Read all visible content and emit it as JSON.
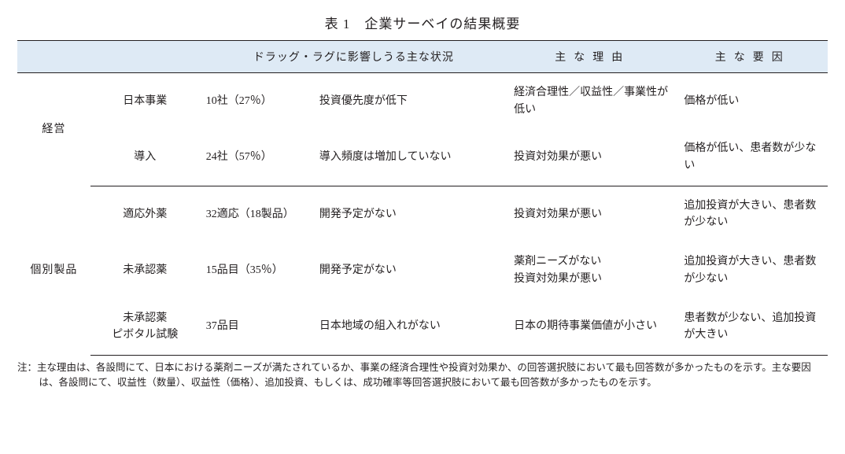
{
  "title": "表 1　企業サーベイの結果概要",
  "colors": {
    "header_bg": "#deeaf5",
    "border": "#231f20",
    "text": "#231f20",
    "background": "#ffffff"
  },
  "typography": {
    "title_fontsize_pt": 13,
    "body_fontsize_pt": 10.5,
    "note_fontsize_pt": 9.5,
    "font_family": "Mincho (serif)"
  },
  "table": {
    "column_widths_pct": [
      9,
      13.5,
      14,
      24,
      21,
      18.5
    ],
    "headers": {
      "col3_4": "ドラッグ・ラグに影響しうる主な状況",
      "col5": "主な理由",
      "col6": "主な要因"
    },
    "groups": [
      {
        "category": "経営",
        "rows": [
          {
            "sub": "日本事業",
            "count": "10社（27％）",
            "situation": "投資優先度が低下",
            "reason": "経済合理性／収益性／事業性が低い",
            "factor": "価格が低い"
          },
          {
            "sub": "導入",
            "count": "24社（57％）",
            "situation": "導入頻度は増加していない",
            "reason": "投資対効果が悪い",
            "factor": "価格が低い、患者数が少ない"
          }
        ]
      },
      {
        "category": "個別製品",
        "rows": [
          {
            "sub": "適応外薬",
            "count": "32適応（18製品）",
            "situation": "開発予定がない",
            "reason": "投資対効果が悪い",
            "factor": "追加投資が大きい、患者数が少ない"
          },
          {
            "sub": "未承認薬",
            "count": "15品目（35％）",
            "situation": "開発予定がない",
            "reason": "薬剤ニーズがない\n投資対効果が悪い",
            "factor": "追加投資が大きい、患者数が少ない"
          },
          {
            "sub": "未承認薬\nピボタル試験",
            "count": "37品目",
            "situation": "日本地域の組入れがない",
            "reason": "日本の期待事業価値が小さい",
            "factor": "患者数が少ない、追加投資が大きい"
          }
        ]
      }
    ]
  },
  "note": "注：主な理由は、各設問にて、日本における薬剤ニーズが満たされているか、事業の経済合理性や投資対効果か、の回答選択肢において最も回答数が多かったものを示す。主な要因は、各設問にて、収益性（数量）、収益性（価格）、追加投資、もしくは、成功確率等回答選択肢において最も回答数が多かったものを示す。"
}
